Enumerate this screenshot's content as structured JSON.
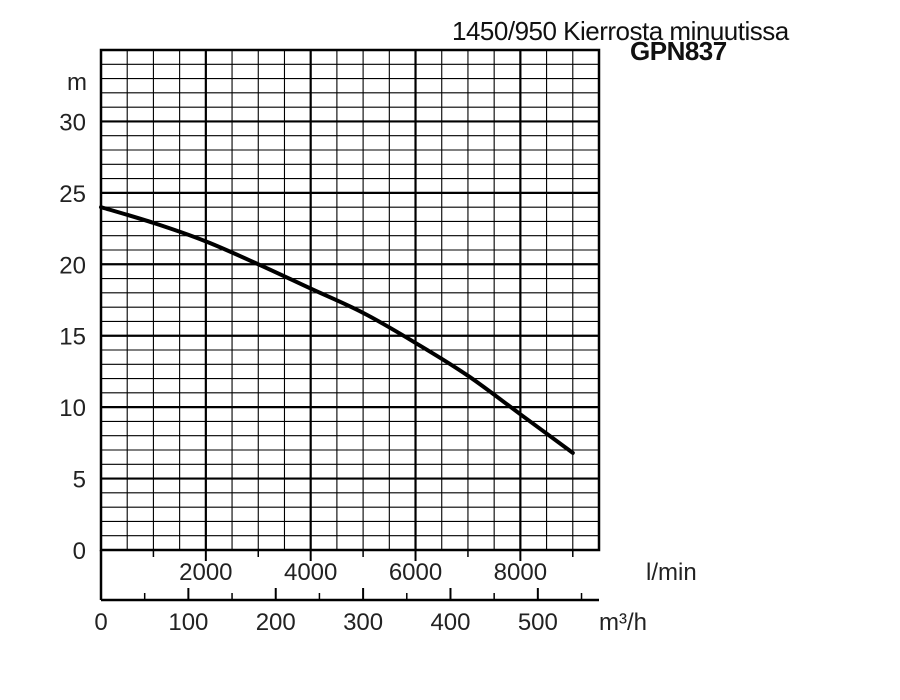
{
  "chart_data": {
    "type": "line",
    "title": "1450/950 Kierrosta minuutissa",
    "subtitle": "GPN837",
    "ylabel": "m",
    "y_ticks": [
      "0",
      "5",
      "10",
      "15",
      "20",
      "25",
      "30"
    ],
    "ylim": [
      0,
      35
    ],
    "x_primary": {
      "unit": "l/min",
      "ticks": [
        "2000",
        "4000",
        "6000",
        "8000"
      ],
      "tick_values": [
        2000,
        4000,
        6000,
        8000
      ],
      "lim": [
        0,
        9500
      ]
    },
    "x_secondary": {
      "unit": "m³/h",
      "ticks": [
        "0",
        "100",
        "200",
        "300",
        "400",
        "500"
      ],
      "tick_values": [
        0,
        100,
        200,
        300,
        400,
        500
      ],
      "lim": [
        0,
        570
      ]
    },
    "grid": true,
    "series": [
      {
        "x_l_min": [
          0,
          1000,
          2000,
          3000,
          4000,
          5000,
          6000,
          7000,
          8000,
          9000
        ],
        "y": [
          24,
          22.9,
          21.6,
          20.0,
          18.3,
          16.6,
          14.5,
          12.2,
          9.5,
          6.8
        ],
        "color": "#000000"
      }
    ]
  }
}
